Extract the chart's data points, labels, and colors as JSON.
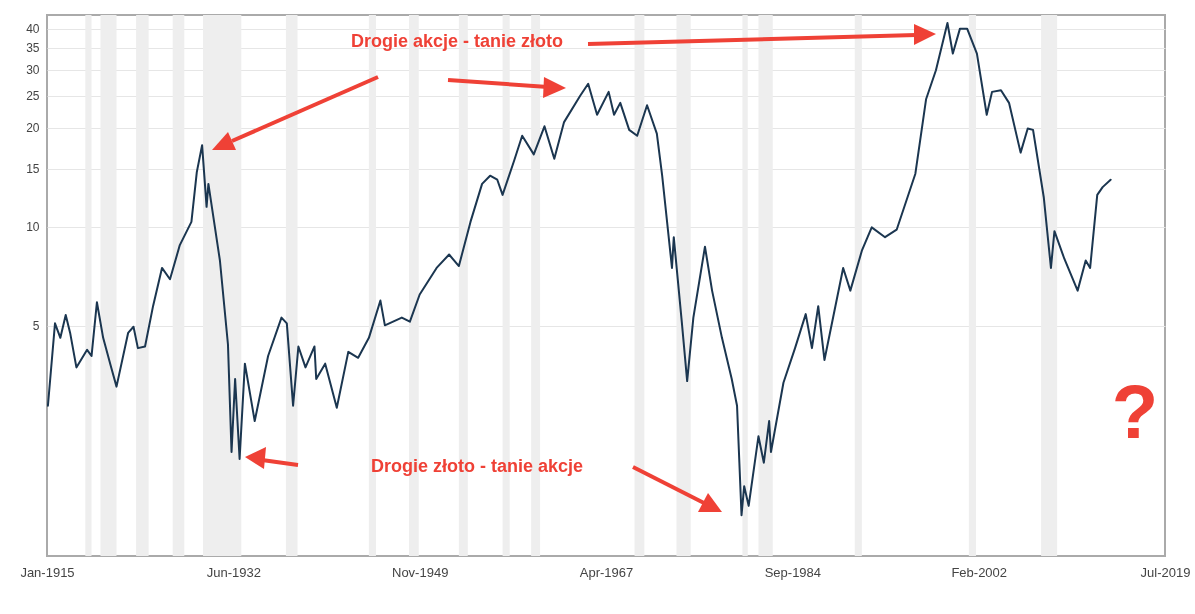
{
  "chart_data": {
    "type": "line",
    "xlim": [
      "1915-01",
      "2019-07"
    ],
    "xticks": [
      {
        "value": "1915-01",
        "label": "Jan-1915"
      },
      {
        "value": "1932-06",
        "label": "Jun-1932"
      },
      {
        "value": "1949-11",
        "label": "Nov-1949"
      },
      {
        "value": "1967-04",
        "label": "Apr-1967"
      },
      {
        "value": "1984-09",
        "label": "Sep-1984"
      },
      {
        "value": "2002-02",
        "label": "Feb-2002"
      },
      {
        "value": "2019-07",
        "label": "Jul-2019"
      }
    ],
    "ylim": [
      1,
      44
    ],
    "yticks": [
      5,
      10,
      15,
      20,
      25,
      30,
      35,
      40
    ],
    "log": "y",
    "grid": "y",
    "line_style": "solid",
    "series": [
      {
        "color": "#1b3650",
        "x": [
          "1915-02",
          "1915-10",
          "1916-04",
          "1916-10",
          "1917-03",
          "1917-10",
          "1918-10",
          "1919-03",
          "1919-09",
          "1920-04",
          "1921-01",
          "1921-07",
          "1922-08",
          "1923-02",
          "1923-07",
          "1924-03",
          "1924-12",
          "1925-10",
          "1926-07",
          "1927-06",
          "1928-07",
          "1929-01",
          "1929-07",
          "1929-12",
          "1930-02",
          "1931-03",
          "1931-12",
          "1932-04",
          "1932-08",
          "1933-01",
          "1933-07",
          "1934-06",
          "1935-09",
          "1936-12",
          "1937-06",
          "1938-01",
          "1938-07",
          "1939-03",
          "1940-01",
          "1940-03",
          "1941-01",
          "1942-02",
          "1943-03",
          "1944-02",
          "1945-02",
          "1946-03",
          "1946-08",
          "1948-03",
          "1948-12",
          "1949-11",
          "1951-06",
          "1952-08",
          "1953-07",
          "1954-08",
          "1955-09",
          "1956-06",
          "1957-02",
          "1957-08",
          "1958-09",
          "1959-06",
          "1960-07",
          "1961-07",
          "1962-06",
          "1963-05",
          "1964-11",
          "1965-08",
          "1966-06",
          "1967-07",
          "1968-01",
          "1968-08",
          "1969-06",
          "1970-03",
          "1971-02",
          "1972-01",
          "1972-07",
          "1973-06",
          "1973-08",
          "1974-05",
          "1974-11",
          "1975-06",
          "1976-07",
          "1977-03",
          "1978-02",
          "1979-01",
          "1979-07",
          "1979-12",
          "1980-03",
          "1980-08",
          "1981-07",
          "1982-01",
          "1982-07",
          "1982-09",
          "1983-11",
          "1984-12",
          "1985-12",
          "1986-07",
          "1987-02",
          "1987-09",
          "1989-06",
          "1990-02",
          "1991-03",
          "1992-02",
          "1993-05",
          "1994-06",
          "1996-03",
          "1997-03",
          "1998-02",
          "1999-03",
          "1999-09",
          "2000-05",
          "2001-01",
          "2001-12",
          "2002-11",
          "2003-05",
          "2004-03",
          "2004-12",
          "2006-01",
          "2006-09",
          "2007-03",
          "2008-03",
          "2008-11",
          "2009-03",
          "2010-02",
          "2011-05",
          "2012-02",
          "2012-07",
          "2013-03",
          "2013-09",
          "2014-06"
        ],
        "values": [
          2.86,
          5.09,
          4.6,
          5.4,
          4.76,
          3.74,
          4.23,
          4.05,
          5.9,
          4.6,
          3.74,
          3.27,
          4.76,
          4.97,
          4.28,
          4.33,
          5.75,
          7.5,
          6.93,
          8.8,
          10.35,
          14.66,
          17.7,
          11.5,
          13.5,
          7.9,
          4.39,
          2.07,
          3.45,
          1.97,
          3.84,
          2.57,
          4.05,
          5.3,
          5.09,
          2.86,
          4.33,
          3.74,
          4.33,
          3.45,
          3.84,
          2.82,
          4.17,
          4.0,
          4.6,
          5.97,
          5.02,
          5.3,
          5.15,
          6.23,
          7.5,
          8.24,
          7.6,
          10.35,
          13.5,
          14.3,
          13.9,
          12.5,
          15.9,
          18.9,
          16.6,
          20.2,
          16.1,
          20.8,
          25.0,
          27.2,
          21.9,
          25.7,
          21.9,
          23.8,
          19.7,
          18.9,
          23.4,
          19.2,
          14.3,
          7.5,
          9.3,
          5.15,
          3.4,
          5.3,
          8.7,
          6.4,
          4.6,
          3.45,
          2.86,
          1.33,
          1.63,
          1.42,
          2.31,
          1.92,
          2.57,
          2.07,
          3.36,
          4.28,
          5.43,
          4.28,
          5.74,
          3.94,
          7.5,
          6.4,
          8.46,
          9.96,
          9.3,
          9.8,
          14.5,
          24.4,
          29.9,
          41.6,
          33.6,
          40,
          40,
          33.6,
          21.9,
          25.7,
          26,
          23.8,
          16.8,
          19.9,
          19.7,
          12.3,
          7.5,
          9.7,
          8.0,
          6.4,
          7.9,
          7.5,
          12.5,
          13.2,
          13.9
        ]
      }
    ],
    "bands": [
      {
        "axis": "x",
        "from": "1918-08",
        "to": "1919-03",
        "color": "#eeeeee"
      },
      {
        "axis": "x",
        "from": "1920-01",
        "to": "1921-07",
        "color": "#eeeeee"
      },
      {
        "axis": "x",
        "from": "1923-05",
        "to": "1924-07",
        "color": "#eeeeee"
      },
      {
        "axis": "x",
        "from": "1926-10",
        "to": "1927-11",
        "color": "#eeeeee"
      },
      {
        "axis": "x",
        "from": "1929-08",
        "to": "1933-03",
        "color": "#eeeeee"
      },
      {
        "axis": "x",
        "from": "1937-05",
        "to": "1938-06",
        "color": "#eeeeee"
      },
      {
        "axis": "x",
        "from": "1945-02",
        "to": "1945-10",
        "color": "#eeeeee"
      },
      {
        "axis": "x",
        "from": "1948-11",
        "to": "1949-10",
        "color": "#eeeeee"
      },
      {
        "axis": "x",
        "from": "1953-07",
        "to": "1954-05",
        "color": "#eeeeee"
      },
      {
        "axis": "x",
        "from": "1957-08",
        "to": "1958-04",
        "color": "#eeeeee"
      },
      {
        "axis": "x",
        "from": "1960-04",
        "to": "1961-02",
        "color": "#eeeeee"
      },
      {
        "axis": "x",
        "from": "1969-12",
        "to": "1970-11",
        "color": "#eeeeee"
      },
      {
        "axis": "x",
        "from": "1973-11",
        "to": "1975-03",
        "color": "#eeeeee"
      },
      {
        "axis": "x",
        "from": "1980-01",
        "to": "1980-07",
        "color": "#eeeeee"
      },
      {
        "axis": "x",
        "from": "1981-07",
        "to": "1982-11",
        "color": "#eeeeee"
      },
      {
        "axis": "x",
        "from": "1990-07",
        "to": "1991-03",
        "color": "#eeeeee"
      },
      {
        "axis": "x",
        "from": "2001-03",
        "to": "2001-11",
        "color": "#eeeeee"
      },
      {
        "axis": "x",
        "from": "2007-12",
        "to": "2009-06",
        "color": "#eeeeee"
      }
    ],
    "annotations": [
      "Drogie akcje - tanie złoto",
      "Drogie złoto - tanie akcje",
      "?"
    ]
  }
}
